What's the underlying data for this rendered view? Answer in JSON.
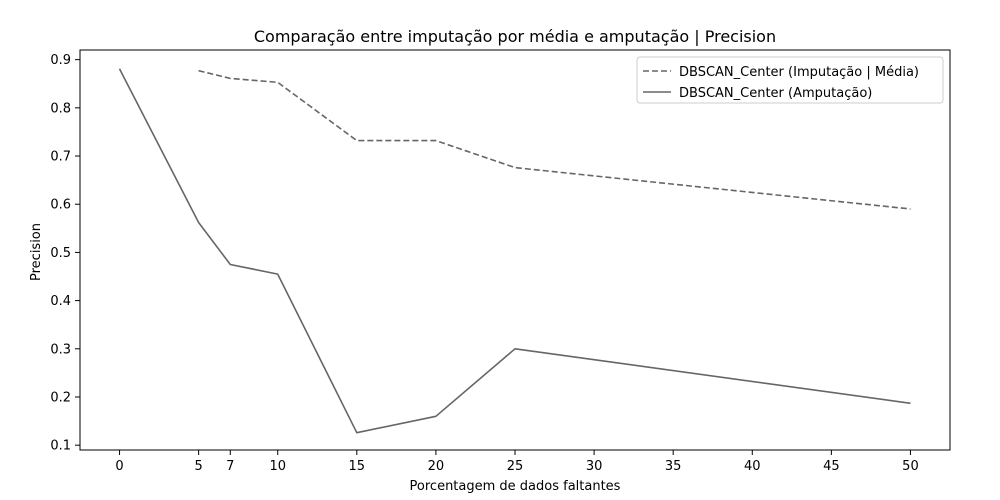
{
  "chart_data": {
    "type": "line",
    "title": "Comparação entre imputação por média e amputação | Precision",
    "xlabel": "Porcentagem de dados faltantes",
    "ylabel": "Precision",
    "xlim": [
      -2.5,
      52.5
    ],
    "ylim": [
      0.09,
      0.92
    ],
    "x_ticks": [
      0,
      5,
      7,
      10,
      15,
      20,
      25,
      30,
      35,
      40,
      45,
      50
    ],
    "y_ticks": [
      0.1,
      0.2,
      0.3,
      0.4,
      0.5,
      0.6,
      0.7,
      0.8,
      0.9
    ],
    "legend_position": "top-right",
    "grid": false,
    "series": [
      {
        "name": "DBSCAN_Center (Imputação | Média)",
        "style": "dashed",
        "color": "#666666",
        "x": [
          5,
          7,
          10,
          15,
          20,
          25,
          50
        ],
        "y": [
          0.877,
          0.861,
          0.853,
          0.732,
          0.732,
          0.676,
          0.59
        ]
      },
      {
        "name": "DBSCAN_Center (Amputação)",
        "style": "solid",
        "color": "#666666",
        "x": [
          0,
          5,
          7,
          10,
          15,
          20,
          25,
          50
        ],
        "y": [
          0.881,
          0.562,
          0.475,
          0.455,
          0.126,
          0.16,
          0.3,
          0.187
        ]
      }
    ]
  }
}
